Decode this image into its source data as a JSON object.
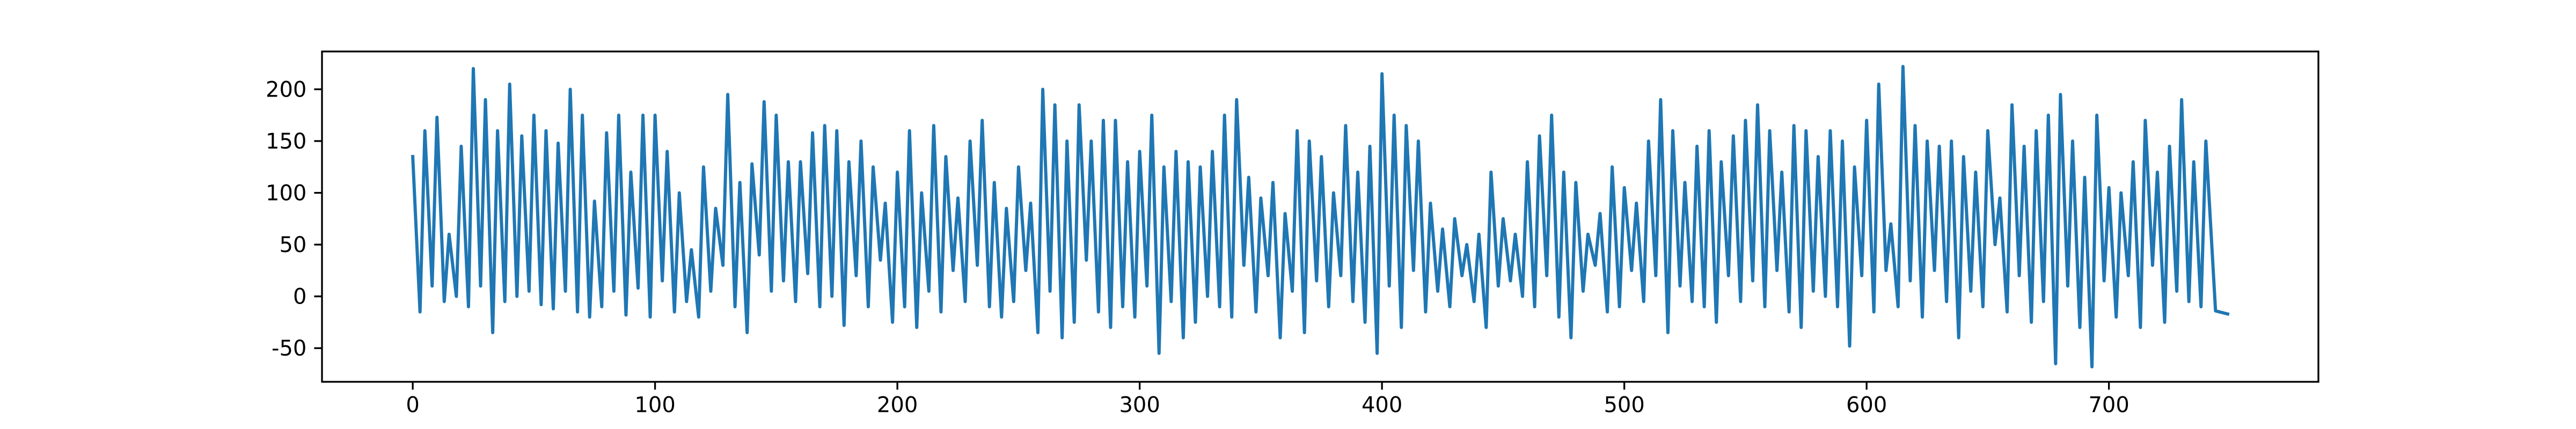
{
  "chart_data": {
    "type": "line",
    "x": [
      0,
      3,
      5,
      8,
      10,
      13,
      15,
      18,
      20,
      23,
      25,
      28,
      30,
      33,
      35,
      38,
      40,
      43,
      45,
      48,
      50,
      53,
      55,
      58,
      60,
      63,
      65,
      68,
      70,
      73,
      75,
      78,
      80,
      83,
      85,
      88,
      90,
      93,
      95,
      98,
      100,
      103,
      105,
      108,
      110,
      113,
      115,
      118,
      120,
      123,
      125,
      128,
      130,
      133,
      135,
      138,
      140,
      143,
      145,
      148,
      150,
      153,
      155,
      158,
      160,
      163,
      165,
      168,
      170,
      173,
      175,
      178,
      180,
      183,
      185,
      188,
      190,
      193,
      195,
      198,
      200,
      203,
      205,
      208,
      210,
      213,
      215,
      218,
      220,
      223,
      225,
      228,
      230,
      233,
      235,
      238,
      240,
      243,
      245,
      248,
      250,
      253,
      255,
      258,
      260,
      263,
      265,
      268,
      270,
      273,
      275,
      278,
      280,
      283,
      285,
      288,
      290,
      293,
      295,
      298,
      300,
      303,
      305,
      308,
      310,
      313,
      315,
      318,
      320,
      323,
      325,
      328,
      330,
      333,
      335,
      338,
      340,
      343,
      345,
      348,
      350,
      353,
      355,
      358,
      360,
      363,
      365,
      368,
      370,
      373,
      375,
      378,
      380,
      383,
      385,
      388,
      390,
      393,
      395,
      398,
      400,
      403,
      405,
      408,
      410,
      413,
      415,
      418,
      420,
      423,
      425,
      428,
      430,
      433,
      435,
      438,
      440,
      443,
      445,
      448,
      450,
      453,
      455,
      458,
      460,
      463,
      465,
      468,
      470,
      473,
      475,
      478,
      480,
      483,
      485,
      488,
      490,
      493,
      495,
      498,
      500,
      503,
      505,
      508,
      510,
      513,
      515,
      518,
      520,
      523,
      525,
      528,
      530,
      533,
      535,
      538,
      540,
      543,
      545,
      548,
      550,
      553,
      555,
      558,
      560,
      563,
      565,
      568,
      570,
      573,
      575,
      578,
      580,
      583,
      585,
      588,
      590,
      593,
      595,
      598,
      600,
      603,
      605,
      608,
      610,
      613,
      615,
      618,
      620,
      623,
      625,
      628,
      630,
      633,
      635,
      638,
      640,
      643,
      645,
      648,
      650,
      653,
      655,
      658,
      660,
      663,
      665,
      668,
      670,
      673,
      675,
      678,
      680,
      683,
      685,
      688,
      690,
      693,
      695,
      698,
      700,
      703,
      705,
      708,
      710,
      713,
      715,
      718,
      720,
      723,
      725,
      728,
      730,
      733,
      735,
      738,
      740,
      744,
      749
    ],
    "series": [
      {
        "color": "#1f77b4",
        "values": [
          135,
          -15,
          160,
          10,
          173,
          -5,
          60,
          0,
          145,
          -10,
          220,
          10,
          190,
          -35,
          160,
          -5,
          205,
          0,
          155,
          5,
          175,
          -8,
          160,
          -12,
          148,
          5,
          200,
          -15,
          175,
          -20,
          92,
          -10,
          158,
          5,
          175,
          -18,
          120,
          8,
          175,
          -20,
          175,
          15,
          140,
          -15,
          100,
          -5,
          45,
          -20,
          125,
          5,
          85,
          30,
          195,
          -10,
          110,
          -35,
          128,
          40,
          188,
          5,
          175,
          15,
          130,
          -5,
          130,
          22,
          158,
          -10,
          165,
          0,
          160,
          -28,
          130,
          20,
          150,
          -10,
          125,
          35,
          90,
          -25,
          120,
          -10,
          160,
          -30,
          100,
          5,
          165,
          -15,
          135,
          25,
          95,
          -5,
          150,
          30,
          170,
          -10,
          110,
          -20,
          85,
          -5,
          125,
          25,
          90,
          -35,
          200,
          5,
          185,
          -40,
          150,
          -25,
          185,
          35,
          150,
          -15,
          170,
          -30,
          170,
          -10,
          130,
          -20,
          140,
          10,
          175,
          -55,
          125,
          -5,
          140,
          -40,
          130,
          -25,
          125,
          0,
          140,
          -10,
          175,
          -20,
          190,
          30,
          115,
          -15,
          95,
          20,
          110,
          -40,
          80,
          5,
          160,
          -35,
          150,
          15,
          135,
          -10,
          100,
          20,
          165,
          -5,
          120,
          -25,
          145,
          -55,
          215,
          10,
          175,
          -30,
          165,
          25,
          150,
          -15,
          90,
          5,
          65,
          -10,
          75,
          20,
          50,
          -5,
          60,
          -30,
          120,
          10,
          75,
          15,
          60,
          0,
          130,
          -10,
          155,
          20,
          175,
          -20,
          120,
          -40,
          110,
          5,
          60,
          30,
          80,
          -15,
          125,
          -10,
          105,
          25,
          90,
          -5,
          150,
          20,
          190,
          -35,
          160,
          10,
          110,
          -5,
          145,
          -10,
          160,
          -25,
          130,
          20,
          155,
          -5,
          170,
          15,
          185,
          -10,
          160,
          25,
          120,
          -15,
          165,
          -30,
          160,
          5,
          135,
          0,
          160,
          -10,
          150,
          -48,
          125,
          20,
          170,
          -15,
          205,
          25,
          70,
          -10,
          222,
          15,
          165,
          -20,
          150,
          25,
          145,
          -5,
          150,
          -40,
          135,
          5,
          120,
          -10,
          160,
          50,
          95,
          -15,
          185,
          20,
          145,
          -25,
          160,
          -5,
          175,
          -65,
          195,
          10,
          150,
          -30,
          115,
          -68,
          175,
          15,
          105,
          -20,
          100,
          20,
          130,
          -30,
          170,
          30,
          120,
          -25,
          145,
          5,
          190,
          -5,
          130,
          -10,
          150,
          -14,
          -17
        ]
      }
    ],
    "xlim": [
      -37.45,
      786.45
    ],
    "ylim": [
      -82.5,
      236.5
    ],
    "xticks": [
      0,
      100,
      200,
      300,
      400,
      500,
      600,
      700
    ],
    "yticks": [
      -50,
      0,
      50,
      100,
      150,
      200
    ]
  }
}
